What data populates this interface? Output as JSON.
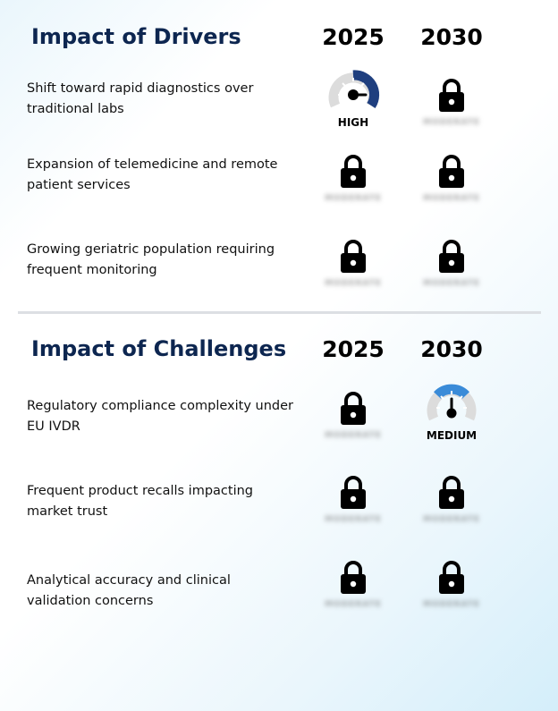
{
  "drivers": {
    "title": "Impact of Drivers",
    "year1": "2025",
    "year2": "2030",
    "rows": [
      {
        "label": "Shift toward rapid diagnostics over traditional labs",
        "y2025": {
          "type": "gauge",
          "level": "high",
          "label": "HIGH"
        },
        "y2030": {
          "type": "lock",
          "blurred": "MODERATE"
        }
      },
      {
        "label": "Expansion of telemedicine and remote patient services",
        "y2025": {
          "type": "lock",
          "blurred": "MODERATE"
        },
        "y2030": {
          "type": "lock",
          "blurred": "MODERATE"
        }
      },
      {
        "label": "Growing geriatric population requiring frequent monitoring",
        "y2025": {
          "type": "lock",
          "blurred": "MODERATE"
        },
        "y2030": {
          "type": "lock",
          "blurred": "MODERATE"
        }
      }
    ]
  },
  "challenges": {
    "title": "Impact of Challenges",
    "year1": "2025",
    "year2": "2030",
    "rows": [
      {
        "label": "Regulatory compliance complexity under EU IVDR",
        "y2025": {
          "type": "lock",
          "blurred": "MODERATE"
        },
        "y2030": {
          "type": "gauge",
          "level": "medium",
          "label": "MEDIUM"
        }
      },
      {
        "label": "Frequent product recalls impacting market trust",
        "y2025": {
          "type": "lock",
          "blurred": "MODERATE"
        },
        "y2030": {
          "type": "lock",
          "blurred": "MODERATE"
        }
      },
      {
        "label": "Analytical accuracy and clinical validation concerns",
        "y2025": {
          "type": "lock",
          "blurred": "MODERATE"
        },
        "y2030": {
          "type": "lock",
          "blurred": "MODERATE"
        }
      }
    ]
  },
  "colors": {
    "title": "#0d2650",
    "gauge_high": "#1f3f7f",
    "gauge_medium": "#3a8bd8",
    "gauge_track": "#dcdcdc"
  },
  "icons": {
    "locked": "lock-icon",
    "gauge": "gauge-icon"
  }
}
